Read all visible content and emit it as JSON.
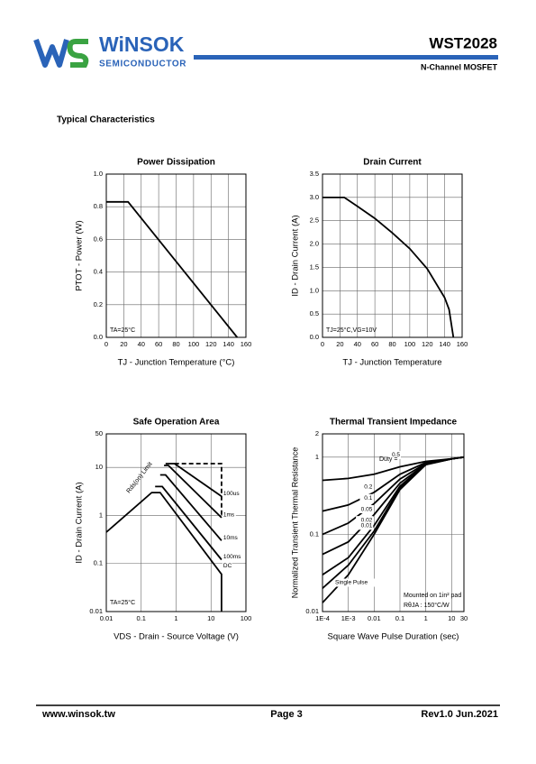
{
  "header": {
    "logo": "WiNSOK",
    "logo_sub": "SEMICONDUCTOR",
    "part": "WST2028",
    "subtitle": "N-Channel MOSFET"
  },
  "section": "Typical Characteristics",
  "chart_data": [
    {
      "type": "line",
      "title": "Power Dissipation",
      "x_label": "TJ - Junction Temperature (°C)",
      "y_label": "PTOT - Power (W)",
      "xlim": [
        0,
        160
      ],
      "xticks": [
        0,
        20,
        40,
        60,
        80,
        100,
        120,
        140,
        160
      ],
      "ylim": [
        0,
        1
      ],
      "yticks": [
        {
          "value": 0,
          "label": "0.0"
        },
        0.2,
        0.4,
        0.6,
        0.8,
        {
          "value": 1,
          "label": "1.0"
        }
      ],
      "grid": true,
      "color": "#000000",
      "annotations": [
        "TA=25°C"
      ],
      "series": [
        {
          "x": [
            0,
            25,
            150
          ],
          "y": [
            0.83,
            0.83,
            0
          ]
        }
      ]
    },
    {
      "type": "line",
      "title": "Drain Current",
      "x_label": "TJ - Junction Temperature",
      "y_label": "ID - Drain Current (A)",
      "xlim": [
        0,
        160
      ],
      "xticks": [
        0,
        20,
        40,
        60,
        80,
        100,
        120,
        140,
        160
      ],
      "ylim": [
        0,
        3.5
      ],
      "yticks": [
        {
          "value": 0,
          "label": "0.0"
        },
        0.5,
        {
          "value": 1,
          "label": "1.0"
        },
        1.5,
        {
          "value": 2,
          "label": "2.0"
        },
        2.5,
        {
          "value": 3,
          "label": "3.0"
        },
        3.5
      ],
      "grid": true,
      "color": "#000000",
      "annotations": [
        "TJ=25°C,VG=10V"
      ],
      "series": [
        {
          "x": [
            0,
            25,
            40,
            60,
            80,
            100,
            120,
            140,
            145,
            150
          ],
          "y": [
            3,
            3,
            2.81,
            2.55,
            2.24,
            1.9,
            1.47,
            0.85,
            0.6,
            0
          ]
        }
      ]
    },
    {
      "type": "line",
      "title": "Safe Operation Area",
      "x_label": "VDS - Drain - Source Voltage (V)",
      "y_label": "ID - Drain Current (A)",
      "log": true,
      "xlim": [
        0.01,
        100
      ],
      "xticks": [
        0.01,
        0.1,
        1,
        10,
        100
      ],
      "ylim": [
        0.01,
        50
      ],
      "yticks": [
        0.01,
        0.1,
        1,
        10,
        50
      ],
      "grid": true,
      "color": "#000000",
      "annotations": [
        "Rds(on) Limit",
        "TA=25°C"
      ],
      "series": [
        {
          "name": "DC",
          "x": [
            0.01,
            0.2,
            0.35,
            20,
            20
          ],
          "y": [
            0.45,
            3,
            3,
            0.06,
            0.01
          ]
        },
        {
          "name": "100ms",
          "x": [
            0.25,
            0.4,
            20
          ],
          "y": [
            4,
            4,
            0.12
          ]
        },
        {
          "name": "10ms",
          "x": [
            0.35,
            0.5,
            20
          ],
          "y": [
            7,
            7,
            0.3
          ]
        },
        {
          "name": "1ms",
          "x": [
            0.45,
            0.6,
            20
          ],
          "y": [
            11,
            11,
            0.9
          ]
        },
        {
          "name": "100us",
          "x": [
            0.5,
            0.9,
            20
          ],
          "y": [
            12,
            12,
            2.5
          ]
        },
        {
          "dash": true,
          "x": [
            0.9,
            20,
            20
          ],
          "y": [
            12,
            12,
            0.9
          ]
        }
      ]
    },
    {
      "type": "line",
      "title": "Thermal Transient Impedance",
      "x_label": "Square Wave Pulse Duration (sec)",
      "y_label": "Normalized Transient Thermal Resistance",
      "log": true,
      "xlim": [
        0.0001,
        30
      ],
      "xticks": [
        {
          "value": 0.0001,
          "label": "1E-4"
        },
        {
          "value": 0.001,
          "label": "1E-3"
        },
        0.01,
        0.1,
        1,
        10,
        30
      ],
      "ylim": [
        0.01,
        2
      ],
      "yticks": [
        0.01,
        0.1,
        1,
        2
      ],
      "grid": true,
      "color": "#000000",
      "annotations": [
        "Duty =",
        "Mounted on 1in² pad",
        "RθJA : 150°C/W"
      ],
      "series": [
        {
          "name": "0.5",
          "x": [
            0.0001,
            0.001,
            0.01,
            0.1,
            1,
            10,
            30
          ],
          "y": [
            0.5,
            0.53,
            0.6,
            0.75,
            0.88,
            0.95,
            1
          ]
        },
        {
          "name": "0.2",
          "x": [
            0.0001,
            0.001,
            0.01,
            0.1,
            1,
            10,
            30
          ],
          "y": [
            0.2,
            0.24,
            0.35,
            0.6,
            0.85,
            0.95,
            1
          ]
        },
        {
          "name": "0.1",
          "x": [
            0.0001,
            0.001,
            0.01,
            0.1,
            1,
            10,
            30
          ],
          "y": [
            0.1,
            0.14,
            0.25,
            0.52,
            0.83,
            0.95,
            1
          ]
        },
        {
          "name": "0.05",
          "x": [
            0.0001,
            0.001,
            0.01,
            0.1,
            1,
            10,
            30
          ],
          "y": [
            0.055,
            0.08,
            0.18,
            0.46,
            0.82,
            0.95,
            1
          ]
        },
        {
          "name": "0.02",
          "x": [
            0.0001,
            0.001,
            0.01,
            0.1,
            1,
            10,
            30
          ],
          "y": [
            0.03,
            0.05,
            0.13,
            0.42,
            0.81,
            0.95,
            1
          ]
        },
        {
          "name": "0.01",
          "x": [
            0.0001,
            0.001,
            0.01,
            0.1,
            1,
            10,
            30
          ],
          "y": [
            0.02,
            0.04,
            0.11,
            0.4,
            0.8,
            0.95,
            1
          ]
        },
        {
          "name": "Single Pulse",
          "x": [
            0.0001,
            0.001,
            0.01,
            0.1,
            1,
            10,
            30
          ],
          "y": [
            0.013,
            0.03,
            0.1,
            0.38,
            0.8,
            0.95,
            1
          ]
        }
      ]
    }
  ],
  "footer": {
    "website": "www.winsok.tw",
    "page": "Page 3",
    "revision": "Rev1.0 Jun.2021"
  }
}
